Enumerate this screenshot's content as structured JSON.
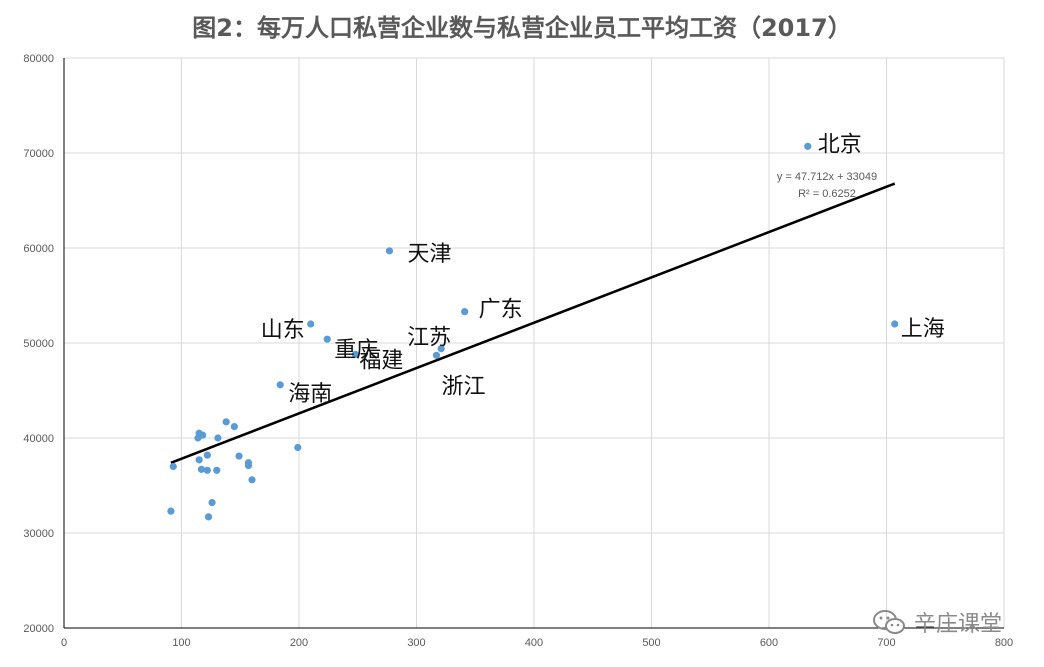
{
  "chart_data": {
    "type": "scatter",
    "title": "图2：每万人口私营企业数与私营企业员工平均工资（2017）",
    "xlim": [
      0,
      800
    ],
    "ylim": [
      20000,
      80000
    ],
    "x_ticks": [
      0,
      100,
      200,
      300,
      400,
      500,
      600,
      700,
      800
    ],
    "y_ticks": [
      20000,
      30000,
      40000,
      50000,
      60000,
      70000,
      80000
    ],
    "grid": true,
    "marker_color": "#5b9bd5",
    "trendline": {
      "slope": 47.712,
      "intercept": 33049,
      "x_range": [
        91,
        707
      ],
      "color": "#000000",
      "equation": "y = 47.712x + 33049",
      "r2": "R² = 0.6252"
    },
    "points": [
      {
        "x": 633,
        "y": 70700,
        "label": "北京"
      },
      {
        "x": 707,
        "y": 52000,
        "label": "上海"
      },
      {
        "x": 277,
        "y": 59700,
        "label": "天津"
      },
      {
        "x": 341,
        "y": 53300,
        "label": "广东"
      },
      {
        "x": 210,
        "y": 52000,
        "label": "山东"
      },
      {
        "x": 224,
        "y": 50400,
        "label": "重庆"
      },
      {
        "x": 248,
        "y": 48800,
        "label": "福建"
      },
      {
        "x": 321,
        "y": 49400,
        "label": "江苏"
      },
      {
        "x": 317,
        "y": 48700,
        "label": "浙江"
      },
      {
        "x": 184,
        "y": 45600,
        "label": "海南"
      },
      {
        "x": 199,
        "y": 39000,
        "label": ""
      },
      {
        "x": 93,
        "y": 37000,
        "label": ""
      },
      {
        "x": 91,
        "y": 32300,
        "label": ""
      },
      {
        "x": 114,
        "y": 40000,
        "label": ""
      },
      {
        "x": 115,
        "y": 40500,
        "label": ""
      },
      {
        "x": 118,
        "y": 40300,
        "label": ""
      },
      {
        "x": 115,
        "y": 37700,
        "label": ""
      },
      {
        "x": 117,
        "y": 36700,
        "label": ""
      },
      {
        "x": 122,
        "y": 36600,
        "label": ""
      },
      {
        "x": 122,
        "y": 38200,
        "label": ""
      },
      {
        "x": 130,
        "y": 36600,
        "label": ""
      },
      {
        "x": 131,
        "y": 40000,
        "label": ""
      },
      {
        "x": 138,
        "y": 41700,
        "label": ""
      },
      {
        "x": 145,
        "y": 41200,
        "label": ""
      },
      {
        "x": 149,
        "y": 38100,
        "label": ""
      },
      {
        "x": 157,
        "y": 37400,
        "label": ""
      },
      {
        "x": 157,
        "y": 37100,
        "label": ""
      },
      {
        "x": 160,
        "y": 35600,
        "label": ""
      },
      {
        "x": 126,
        "y": 33200,
        "label": ""
      },
      {
        "x": 123,
        "y": 31700,
        "label": ""
      }
    ]
  },
  "watermark": {
    "text": "辛庄课堂",
    "icon": "wechat-icon"
  }
}
